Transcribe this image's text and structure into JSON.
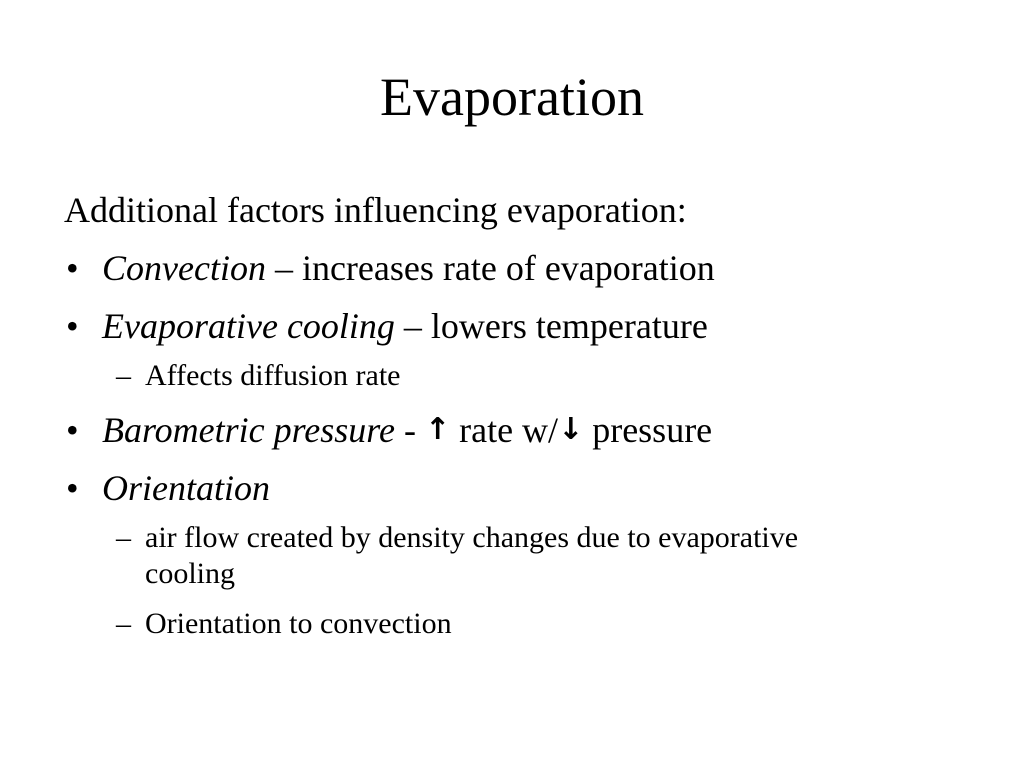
{
  "slide": {
    "title": "Evaporation",
    "intro": "Additional factors influencing evaporation:",
    "bullet_glyph": "•",
    "dash_glyph": "–",
    "items": [
      {
        "term": "Convection",
        "sep": " – ",
        "text": "increases rate of evaporation"
      },
      {
        "term": "Evaporative cooling",
        "sep": " – ",
        "text": "lowers temperature",
        "sub": [
          "Affects diffusion rate"
        ]
      },
      {
        "term": "Barometric pressure",
        "sep": " - ",
        "arrow1": "↑",
        "text_a": " rate w/",
        "arrow2": "↓",
        "text_b": " pressure"
      },
      {
        "term": "Orientation",
        "sub": [
          "air flow created by density changes due to evaporative cooling",
          "Orientation to convection"
        ]
      }
    ]
  }
}
